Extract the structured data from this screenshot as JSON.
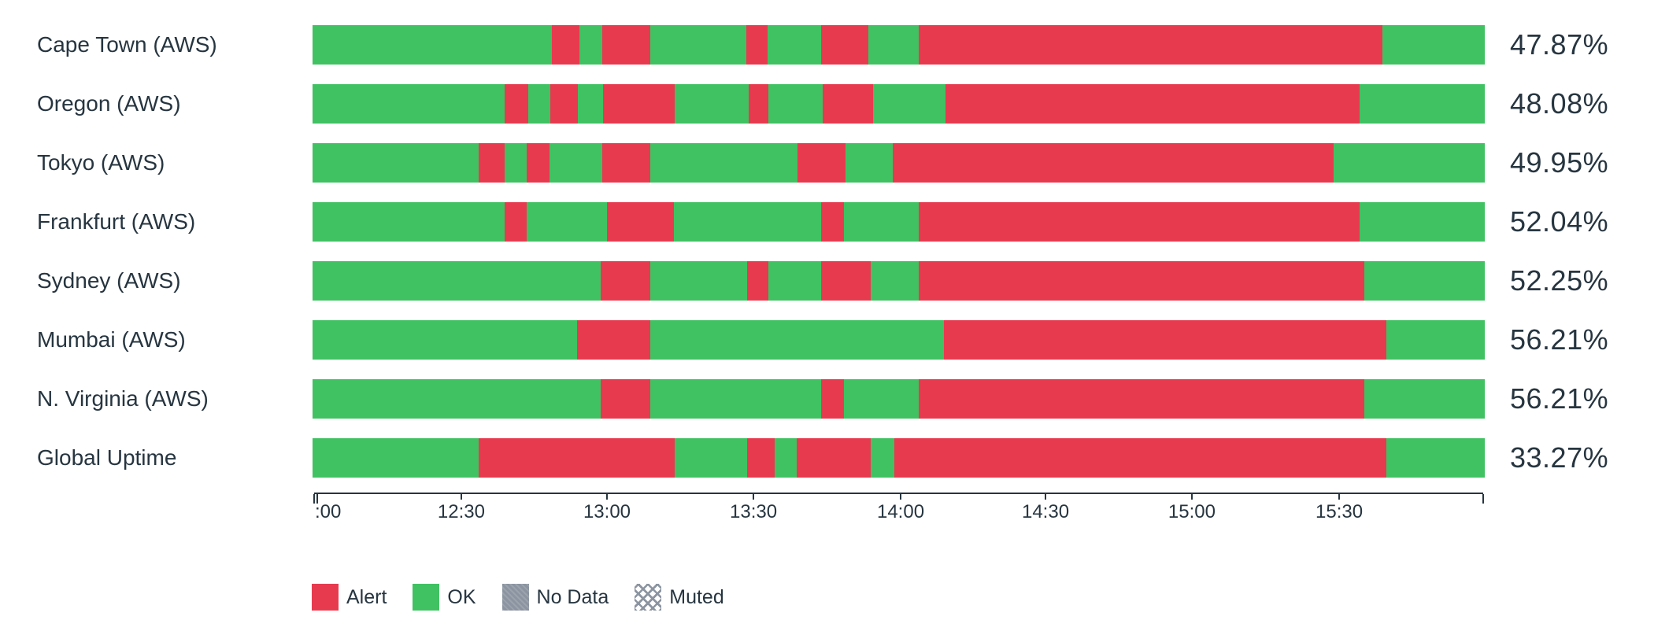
{
  "colors": {
    "background": "#FFFFFF",
    "alert": "#E73A4F",
    "ok": "#40C262",
    "no_data": "#8B94A0",
    "text": "#263540",
    "axis": "#263540"
  },
  "chart_data": {
    "type": "bar",
    "subtype": "status-uptime-timeline",
    "orientation": "horizontal",
    "time_range_start": "12:00",
    "time_range_end": "16:00",
    "grid": false,
    "legend_position": "bottom",
    "x_axis": {
      "tick_labels": [
        ":00",
        "12:30",
        "13:00",
        "13:30",
        "14:00",
        "14:30",
        "15:00",
        "15:30"
      ],
      "tick_positions": [
        0.0027,
        0.1259,
        0.2505,
        0.3758,
        0.5017,
        0.6256,
        0.7508,
        0.8768
      ],
      "start_cap_position": 0,
      "end_cap_position": 1
    },
    "legend": [
      {
        "status": "alert",
        "label": "Alert"
      },
      {
        "status": "ok",
        "label": "OK"
      },
      {
        "status": "no_data",
        "label": "No Data"
      },
      {
        "status": "muted",
        "label": "Muted"
      }
    ],
    "rows": [
      {
        "label": "Cape Town (AWS)",
        "uptime_label": "47.87%",
        "uptime_value": 47.87,
        "segments": [
          [
            "ok",
            0,
            0.204
          ],
          [
            "alert",
            0.204,
            0.228
          ],
          [
            "ok",
            0.228,
            0.247
          ],
          [
            "alert",
            0.247,
            0.288
          ],
          [
            "ok",
            0.288,
            0.37
          ],
          [
            "alert",
            0.37,
            0.388
          ],
          [
            "ok",
            0.388,
            0.434
          ],
          [
            "alert",
            0.434,
            0.474
          ],
          [
            "ok",
            0.474,
            0.517
          ],
          [
            "alert",
            0.517,
            0.913
          ],
          [
            "ok",
            0.913,
            1
          ]
        ]
      },
      {
        "label": "Oregon (AWS)",
        "uptime_label": "48.08%",
        "uptime_value": 48.08,
        "segments": [
          [
            "ok",
            0,
            0.164
          ],
          [
            "alert",
            0.164,
            0.184
          ],
          [
            "ok",
            0.184,
            0.203
          ],
          [
            "alert",
            0.203,
            0.226
          ],
          [
            "ok",
            0.226,
            0.248
          ],
          [
            "alert",
            0.248,
            0.309
          ],
          [
            "ok",
            0.309,
            0.372
          ],
          [
            "alert",
            0.372,
            0.389
          ],
          [
            "ok",
            0.389,
            0.435
          ],
          [
            "alert",
            0.435,
            0.478
          ],
          [
            "ok",
            0.478,
            0.54
          ],
          [
            "alert",
            0.54,
            0.893
          ],
          [
            "ok",
            0.893,
            1
          ]
        ]
      },
      {
        "label": "Tokyo (AWS)",
        "uptime_label": "49.95%",
        "uptime_value": 49.95,
        "segments": [
          [
            "ok",
            0,
            0.142
          ],
          [
            "alert",
            0.142,
            0.164
          ],
          [
            "ok",
            0.164,
            0.183
          ],
          [
            "alert",
            0.183,
            0.202
          ],
          [
            "ok",
            0.202,
            0.247
          ],
          [
            "alert",
            0.247,
            0.288
          ],
          [
            "ok",
            0.288,
            0.414
          ],
          [
            "alert",
            0.414,
            0.455
          ],
          [
            "ok",
            0.455,
            0.495
          ],
          [
            "alert",
            0.495,
            0.871
          ],
          [
            "ok",
            0.871,
            1
          ]
        ]
      },
      {
        "label": "Frankfurt (AWS)",
        "uptime_label": "52.04%",
        "uptime_value": 52.04,
        "segments": [
          [
            "ok",
            0,
            0.164
          ],
          [
            "alert",
            0.164,
            0.183
          ],
          [
            "ok",
            0.183,
            0.251
          ],
          [
            "alert",
            0.251,
            0.308
          ],
          [
            "ok",
            0.308,
            0.434
          ],
          [
            "alert",
            0.434,
            0.453
          ],
          [
            "ok",
            0.453,
            0.517
          ],
          [
            "alert",
            0.517,
            0.893
          ],
          [
            "ok",
            0.893,
            1
          ]
        ]
      },
      {
        "label": "Sydney (AWS)",
        "uptime_label": "52.25%",
        "uptime_value": 52.25,
        "segments": [
          [
            "ok",
            0,
            0.246
          ],
          [
            "alert",
            0.246,
            0.288
          ],
          [
            "ok",
            0.288,
            0.371
          ],
          [
            "alert",
            0.371,
            0.389
          ],
          [
            "ok",
            0.389,
            0.434
          ],
          [
            "alert",
            0.434,
            0.476
          ],
          [
            "ok",
            0.476,
            0.517
          ],
          [
            "alert",
            0.517,
            0.897
          ],
          [
            "ok",
            0.897,
            1
          ]
        ]
      },
      {
        "label": "Mumbai (AWS)",
        "uptime_label": "56.21%",
        "uptime_value": 56.21,
        "segments": [
          [
            "ok",
            0,
            0.2255
          ],
          [
            "alert",
            0.2255,
            0.288
          ],
          [
            "ok",
            0.288,
            0.5386
          ],
          [
            "alert",
            0.5386,
            0.916
          ],
          [
            "ok",
            0.916,
            1
          ]
        ]
      },
      {
        "label": "N. Virginia (AWS)",
        "uptime_label": "56.21%",
        "uptime_value": 56.21,
        "segments": [
          [
            "ok",
            0,
            0.246
          ],
          [
            "alert",
            0.246,
            0.288
          ],
          [
            "ok",
            0.288,
            0.434
          ],
          [
            "alert",
            0.434,
            0.453
          ],
          [
            "ok",
            0.453,
            0.517
          ],
          [
            "alert",
            0.517,
            0.897
          ],
          [
            "ok",
            0.897,
            1
          ]
        ]
      },
      {
        "label": "Global Uptime",
        "uptime_label": "33.27%",
        "uptime_value": 33.27,
        "segments": [
          [
            "ok",
            0,
            0.142
          ],
          [
            "alert",
            0.142,
            0.309
          ],
          [
            "ok",
            0.309,
            0.371
          ],
          [
            "alert",
            0.371,
            0.394
          ],
          [
            "ok",
            0.394,
            0.413
          ],
          [
            "alert",
            0.413,
            0.476
          ],
          [
            "ok",
            0.476,
            0.496
          ],
          [
            "alert",
            0.496,
            0.916
          ],
          [
            "ok",
            0.916,
            1
          ]
        ]
      }
    ]
  }
}
